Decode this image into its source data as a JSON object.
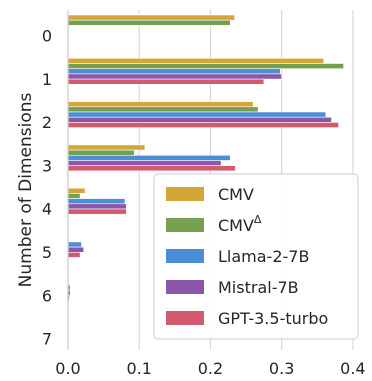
{
  "chart_data": {
    "type": "bar",
    "orientation": "horizontal",
    "categories": [
      "0",
      "1",
      "2",
      "3",
      "4",
      "5",
      "6",
      "7"
    ],
    "ylabel": "Number of Dimensions",
    "xlabel": "",
    "xlim": [
      0,
      0.41
    ],
    "xticks": [
      {
        "value": 0.0,
        "label": "0.0"
      },
      {
        "value": 0.1,
        "label": "0.1"
      },
      {
        "value": 0.2,
        "label": "0.2"
      },
      {
        "value": 0.3,
        "label": "0.3"
      },
      {
        "value": 0.4,
        "label": "0.4"
      }
    ],
    "grid": "vertical",
    "legend_position": "bottom-right",
    "series": [
      {
        "name": "CMV",
        "name_sup": "",
        "color": "#D4A637",
        "values": [
          0.234,
          0.359,
          0.26,
          0.108,
          0.024,
          0.0,
          0.0,
          0.0
        ]
      },
      {
        "name": "CMV",
        "name_sup": "Δ",
        "color": "#76A04F",
        "values": [
          0.228,
          0.387,
          0.267,
          0.093,
          0.017,
          0.0,
          0.0,
          0.0
        ]
      },
      {
        "name": "Llama-2-7B",
        "name_sup": "",
        "color": "#4A8DD8",
        "values": [
          0.0,
          0.298,
          0.362,
          0.228,
          0.08,
          0.019,
          0.003,
          0.0
        ]
      },
      {
        "name": "Mistral-7B",
        "name_sup": "",
        "color": "#8C57A9",
        "values": [
          0.0,
          0.3,
          0.37,
          0.215,
          0.082,
          0.022,
          0.003,
          0.0
        ]
      },
      {
        "name": "GPT-3.5-turbo",
        "name_sup": "",
        "color": "#D15A6E",
        "values": [
          0.0,
          0.275,
          0.38,
          0.235,
          0.082,
          0.017,
          0.002,
          0.0
        ]
      }
    ]
  }
}
